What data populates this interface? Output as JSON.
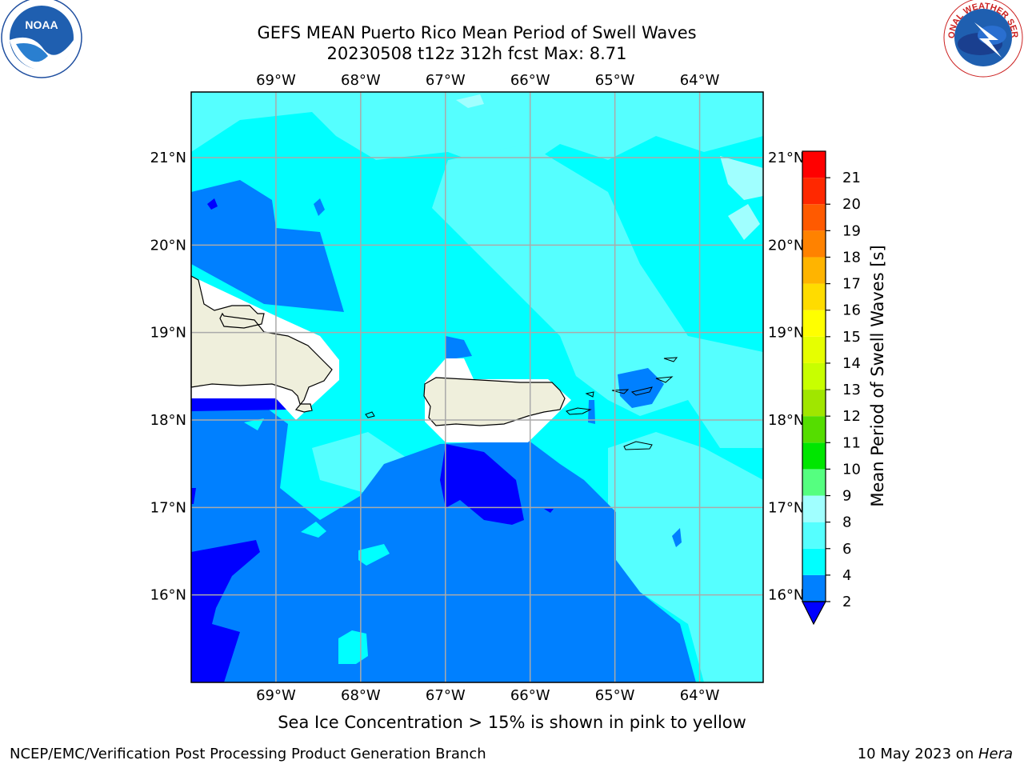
{
  "title": {
    "line1": "GEFS MEAN Puerto Rico Mean Period of Swell Waves",
    "line2": "20230508 t12z 312h fcst   Max: 8.71"
  },
  "logos": {
    "left": {
      "icon": "noaa-logo",
      "text": "NOAA"
    },
    "right": {
      "icon": "national-weather-service-logo",
      "text": "NATIONAL WEATHER SERVICE"
    }
  },
  "map": {
    "longitude_labels": [
      "69°W",
      "68°W",
      "67°W",
      "66°W",
      "65°W",
      "64°W"
    ],
    "latitude_labels": [
      "21°N",
      "20°N",
      "19°N",
      "18°N",
      "17°N",
      "16°N"
    ],
    "extent": {
      "lon": [
        -70.0,
        -63.25
      ],
      "lat": [
        15.0,
        21.75
      ]
    },
    "land_color": "#efefdc",
    "grid_color": "#aaaaaa"
  },
  "colorbar": {
    "label": "Mean Period of Swell Waves [s]",
    "ticks": [
      "21",
      "20",
      "19",
      "18",
      "17",
      "16",
      "15",
      "14",
      "13",
      "12",
      "11",
      "10",
      "9",
      "8",
      "6",
      "4",
      "2"
    ],
    "levels": [
      2,
      4,
      6,
      8,
      9,
      10,
      11,
      12,
      13,
      14,
      15,
      16,
      17,
      18,
      19,
      20,
      21
    ],
    "colors": [
      "#0080ff",
      "#00ffff",
      "#55ffff",
      "#a0ffff",
      "#55ff80",
      "#00e600",
      "#55dd00",
      "#a0e600",
      "#c8ff00",
      "#e6ff00",
      "#ffff00",
      "#ffdc00",
      "#ffb400",
      "#ff8200",
      "#ff5a00",
      "#ff2800",
      "#ff0000"
    ],
    "under_color": "#0000ff"
  },
  "caption": "Sea Ice Concentration > 15% is shown in pink to yellow",
  "footer": {
    "left": "NCEP/EMC/Verification Post Processing Product Generation Branch",
    "right_date": "10 May 2023 on ",
    "right_host": "Hera"
  }
}
